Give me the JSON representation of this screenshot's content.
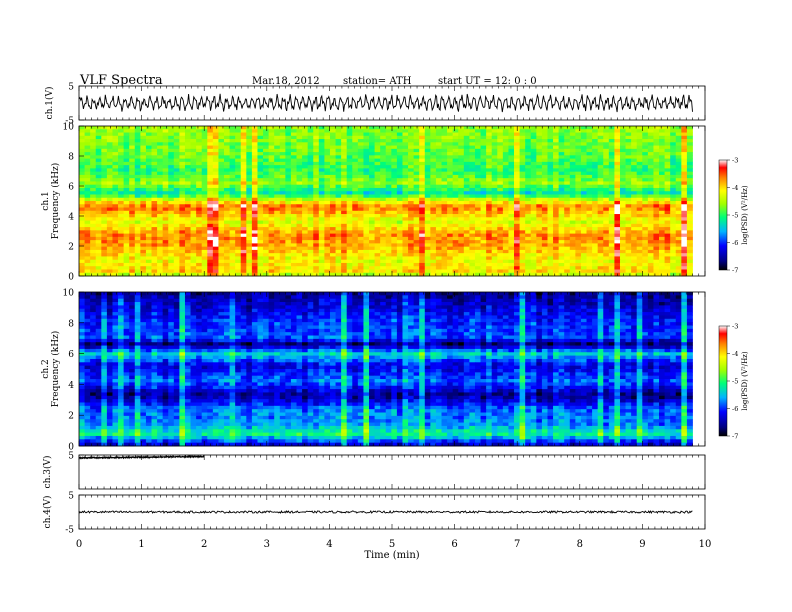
{
  "header": {
    "title": "VLF  Spectra",
    "date": "Mar.18, 2012",
    "station": "station= ATH",
    "start": "start  UT  =     12: 0  : 0"
  },
  "chart_data": {
    "type": "heatmap",
    "xlabel": "Time  (min)",
    "xlim": [
      0,
      10
    ],
    "x_ticks": [
      "0",
      "1",
      "2",
      "3",
      "4",
      "5",
      "6",
      "7",
      "8",
      "9",
      "10"
    ],
    "data_end_min": 9.8,
    "panels": [
      {
        "id": "ch1-waveform",
        "kind": "line",
        "ylabel": "ch.1(V)",
        "ylim": [
          -5,
          5
        ],
        "y_ticks": [
          "5",
          "-5"
        ],
        "amplitude": 3.5,
        "description": "oscillating broadband waveform"
      },
      {
        "id": "ch1-spectrogram",
        "kind": "heatmap",
        "ylabel_line1": "ch.1",
        "ylabel_line2": "Frequency  (kHz)",
        "ylim": [
          0,
          10
        ],
        "y_ticks": [
          "10",
          "8",
          "6",
          "4",
          "2",
          "0"
        ],
        "colorbar": {
          "label": "log(PSD) (V²/Hz)",
          "range": [
            -7,
            -3
          ],
          "ticks": [
            "-3",
            "-4",
            "-5",
            "-6",
            "-7"
          ]
        },
        "band_profile": [
          {
            "f": 10,
            "v": -4.6
          },
          {
            "f": 8,
            "v": -4.8
          },
          {
            "f": 7,
            "v": -5.0
          },
          {
            "f": 6.2,
            "v": -4.6
          },
          {
            "f": 5.5,
            "v": -5.3
          },
          {
            "f": 5.0,
            "v": -4.2
          },
          {
            "f": 4.6,
            "v": -3.6
          },
          {
            "f": 3.6,
            "v": -4.3
          },
          {
            "f": 2.8,
            "v": -3.7
          },
          {
            "f": 2.0,
            "v": -3.8
          },
          {
            "f": 1.0,
            "v": -4.2
          },
          {
            "f": 0.3,
            "v": -4.0
          },
          {
            "f": 0,
            "v": -4.6
          }
        ]
      },
      {
        "id": "ch2-spectrogram",
        "kind": "heatmap",
        "ylabel_line1": "ch.2",
        "ylabel_line2": "Frequency  (kHz)",
        "ylim": [
          0,
          10
        ],
        "y_ticks": [
          "10",
          "8",
          "6",
          "4",
          "2",
          "0"
        ],
        "colorbar": {
          "label": "log(PSD) (V²/Hz)",
          "range": [
            -7,
            -3
          ],
          "ticks": [
            "-3",
            "-4",
            "-5",
            "-6",
            "-7"
          ]
        },
        "band_profile": [
          {
            "f": 10,
            "v": -6.6
          },
          {
            "f": 8,
            "v": -6.0
          },
          {
            "f": 7,
            "v": -5.9
          },
          {
            "f": 6.6,
            "v": -6.7
          },
          {
            "f": 6.0,
            "v": -5.4
          },
          {
            "f": 5.2,
            "v": -6.3
          },
          {
            "f": 4.2,
            "v": -5.8
          },
          {
            "f": 3.3,
            "v": -6.6
          },
          {
            "f": 2.4,
            "v": -5.8
          },
          {
            "f": 1.4,
            "v": -5.7
          },
          {
            "f": 0.8,
            "v": -5.1
          },
          {
            "f": 0,
            "v": -6.5
          }
        ]
      },
      {
        "id": "ch3-waveform",
        "kind": "line",
        "ylabel": "ch.3(V)",
        "ylim": [
          -5,
          5
        ],
        "y_ticks": [
          "5"
        ],
        "level": 4.4,
        "data_end_min": 2.0,
        "description": "near-saturated trace, ends near t=2 min"
      },
      {
        "id": "ch4-waveform",
        "kind": "line",
        "ylabel": "ch.4(V)",
        "ylim": [
          -5,
          5
        ],
        "y_ticks": [
          "5",
          "-5"
        ],
        "level": 0,
        "description": "flat trace near 0 V"
      }
    ]
  }
}
